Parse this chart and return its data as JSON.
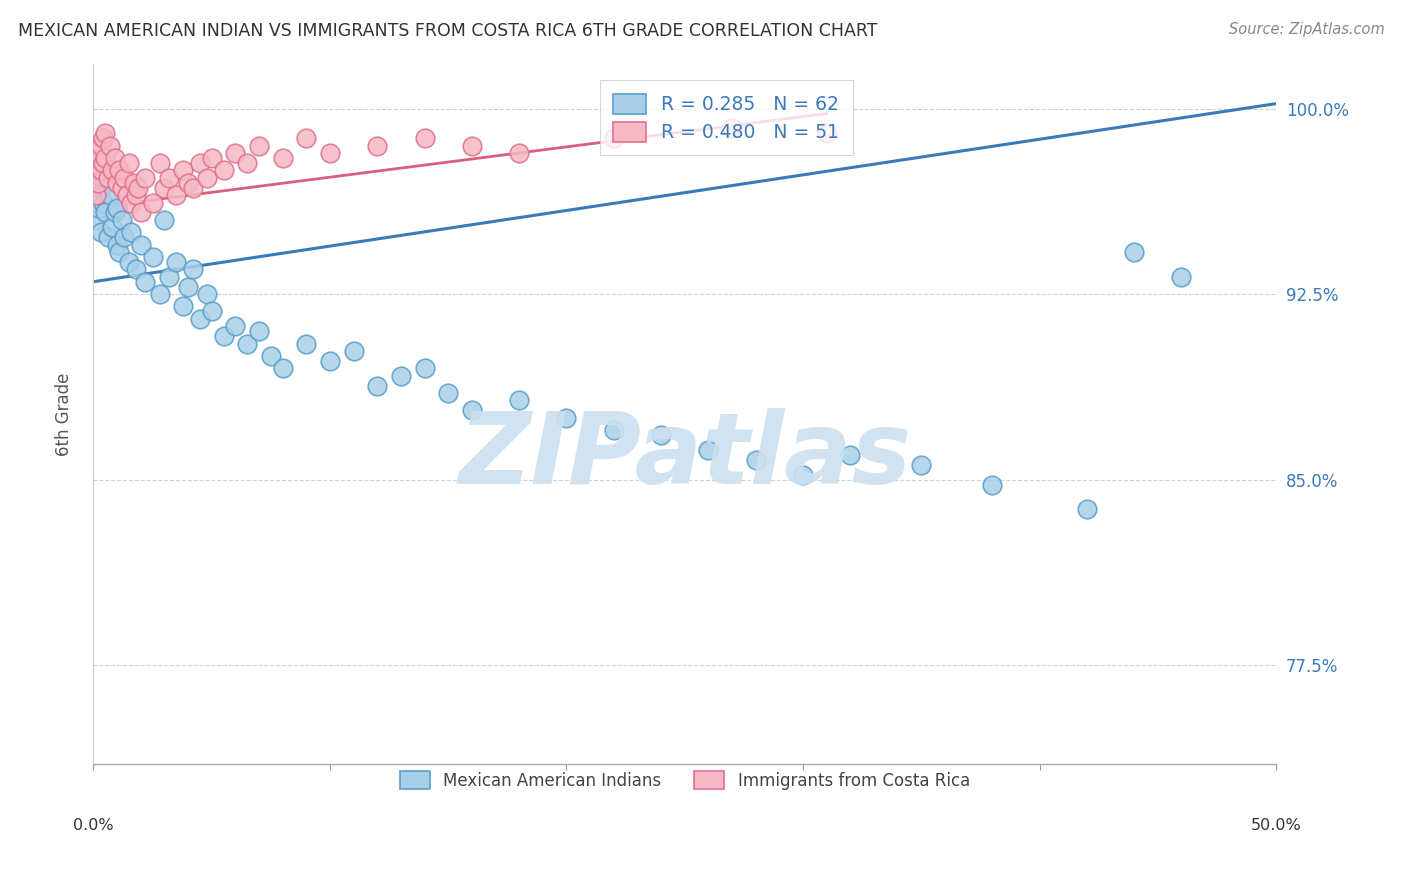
{
  "title": "MEXICAN AMERICAN INDIAN VS IMMIGRANTS FROM COSTA RICA 6TH GRADE CORRELATION CHART",
  "source": "Source: ZipAtlas.com",
  "ylabel": "6th Grade",
  "ytick_labels": [
    "77.5%",
    "85.0%",
    "92.5%",
    "100.0%"
  ],
  "ytick_values": [
    0.775,
    0.85,
    0.925,
    1.0
  ],
  "xlim": [
    0.0,
    0.5
  ],
  "ylim": [
    0.735,
    1.018
  ],
  "blue_color": "#a8cfe8",
  "pink_color": "#f5b8c4",
  "blue_edge_color": "#5b9ec9",
  "pink_edge_color": "#e07090",
  "blue_line_color": "#3a7aba",
  "pink_line_color": "#d95f7a",
  "R_blue": 0.285,
  "N_blue": 62,
  "R_pink": 0.48,
  "N_pink": 51,
  "watermark_text": "ZIPatlas",
  "watermark_color": "#cce0f0",
  "grid_color": "#d0d0d0",
  "background_color": "#ffffff",
  "blue_scatter_x": [
    0.001,
    0.001,
    0.002,
    0.002,
    0.003,
    0.003,
    0.004,
    0.004,
    0.005,
    0.005,
    0.006,
    0.007,
    0.008,
    0.009,
    0.01,
    0.01,
    0.011,
    0.012,
    0.013,
    0.015,
    0.016,
    0.018,
    0.02,
    0.022,
    0.025,
    0.028,
    0.03,
    0.032,
    0.035,
    0.038,
    0.04,
    0.042,
    0.045,
    0.048,
    0.05,
    0.055,
    0.06,
    0.065,
    0.07,
    0.075,
    0.08,
    0.09,
    0.1,
    0.11,
    0.12,
    0.13,
    0.14,
    0.15,
    0.16,
    0.18,
    0.2,
    0.22,
    0.24,
    0.26,
    0.28,
    0.3,
    0.32,
    0.35,
    0.38,
    0.42,
    0.44,
    0.46
  ],
  "blue_scatter_y": [
    0.97,
    0.955,
    0.975,
    0.96,
    0.968,
    0.95,
    0.978,
    0.962,
    0.972,
    0.958,
    0.948,
    0.965,
    0.952,
    0.958,
    0.945,
    0.96,
    0.942,
    0.955,
    0.948,
    0.938,
    0.95,
    0.935,
    0.945,
    0.93,
    0.94,
    0.925,
    0.955,
    0.932,
    0.938,
    0.92,
    0.928,
    0.935,
    0.915,
    0.925,
    0.918,
    0.908,
    0.912,
    0.905,
    0.91,
    0.9,
    0.895,
    0.905,
    0.898,
    0.902,
    0.888,
    0.892,
    0.895,
    0.885,
    0.878,
    0.882,
    0.875,
    0.87,
    0.868,
    0.862,
    0.858,
    0.852,
    0.86,
    0.856,
    0.848,
    0.838,
    0.942,
    0.932
  ],
  "pink_scatter_x": [
    0.001,
    0.001,
    0.002,
    0.002,
    0.003,
    0.003,
    0.004,
    0.004,
    0.005,
    0.005,
    0.006,
    0.007,
    0.008,
    0.009,
    0.01,
    0.011,
    0.012,
    0.013,
    0.014,
    0.015,
    0.016,
    0.017,
    0.018,
    0.019,
    0.02,
    0.022,
    0.025,
    0.028,
    0.03,
    0.032,
    0.035,
    0.038,
    0.04,
    0.042,
    0.045,
    0.048,
    0.05,
    0.055,
    0.06,
    0.065,
    0.07,
    0.08,
    0.09,
    0.1,
    0.12,
    0.14,
    0.16,
    0.18,
    0.22,
    0.27,
    0.31
  ],
  "pink_scatter_y": [
    0.978,
    0.965,
    0.982,
    0.97,
    0.985,
    0.975,
    0.988,
    0.978,
    0.99,
    0.98,
    0.972,
    0.985,
    0.975,
    0.98,
    0.97,
    0.975,
    0.968,
    0.972,
    0.965,
    0.978,
    0.962,
    0.97,
    0.965,
    0.968,
    0.958,
    0.972,
    0.962,
    0.978,
    0.968,
    0.972,
    0.965,
    0.975,
    0.97,
    0.968,
    0.978,
    0.972,
    0.98,
    0.975,
    0.982,
    0.978,
    0.985,
    0.98,
    0.988,
    0.982,
    0.985,
    0.988,
    0.985,
    0.982,
    0.988,
    0.992,
    0.99
  ],
  "blue_line_x": [
    0.0,
    0.5
  ],
  "blue_line_y": [
    0.93,
    1.002
  ],
  "pink_line_x": [
    0.0,
    0.31
  ],
  "pink_line_y": [
    0.96,
    0.998
  ]
}
